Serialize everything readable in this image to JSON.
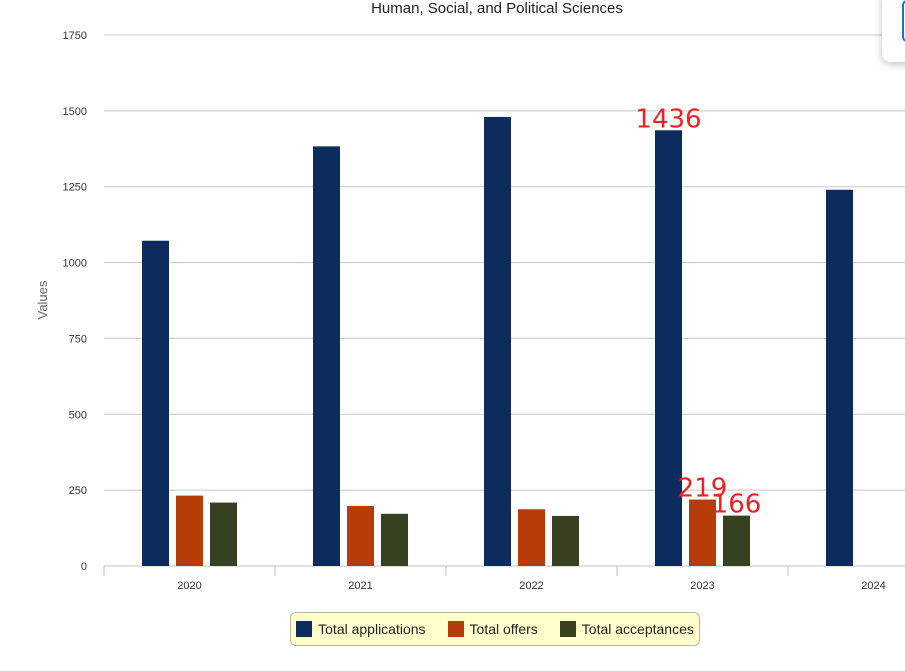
{
  "chart_data": {
    "type": "bar",
    "title": "Human, Social, and Political Sciences",
    "ylabel": "Values",
    "xlabel": "",
    "ylim": [
      0,
      1750
    ],
    "yticks": [
      0,
      250,
      500,
      750,
      1000,
      1250,
      1500,
      1750
    ],
    "categories": [
      "2020",
      "2021",
      "2022",
      "2023",
      "2024"
    ],
    "series": [
      {
        "name": "Total applications",
        "color": "#0c2c5e",
        "values": [
          1072,
          1383,
          1480,
          1436,
          1240
        ]
      },
      {
        "name": "Total offers",
        "color": "#b83c0a",
        "values": [
          232,
          198,
          187,
          219,
          null
        ]
      },
      {
        "name": "Total acceptances",
        "color": "#374120",
        "values": [
          209,
          172,
          165,
          166,
          null
        ]
      }
    ],
    "annotations": [
      {
        "text": "1436",
        "category": "2023",
        "series": 0,
        "color": "#ee2222"
      },
      {
        "text": "219",
        "category": "2023",
        "series": 1,
        "color": "#ee2222"
      },
      {
        "text": "166",
        "category": "2023",
        "series": 2,
        "color": "#ee2222"
      }
    ],
    "grid": true,
    "legend_position": "bottom-center"
  }
}
